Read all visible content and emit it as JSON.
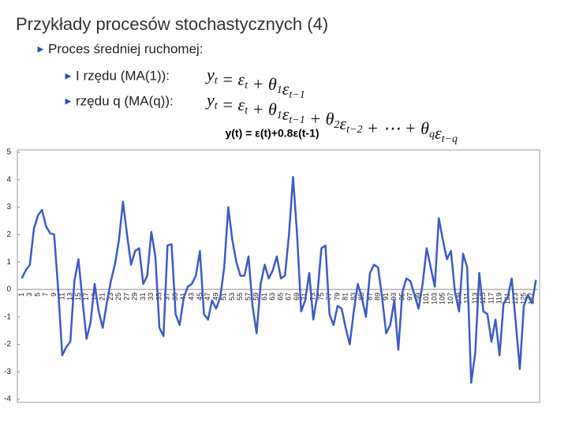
{
  "slide": {
    "title": "Przykłady procesów stochastycznych (4)",
    "bullets": [
      "Proces średniej ruchomej:",
      "I rzędu (MA(1)):",
      "rzędu q  (MA(q)):"
    ],
    "ma1_formula": [
      {
        "text": "y",
        "sub": "t"
      },
      {
        "text": " = "
      },
      {
        "text": "ε",
        "sub": "t"
      },
      {
        "text": " + "
      },
      {
        "text": "θ",
        "sub": "1"
      },
      {
        "text": "ε",
        "sub": "t−1"
      }
    ],
    "maq_formula": [
      {
        "text": "y",
        "sub": "t"
      },
      {
        "text": " = "
      },
      {
        "text": "ε",
        "sub": "t"
      },
      {
        "text": " + "
      },
      {
        "text": "θ",
        "sub": "1"
      },
      {
        "text": "ε",
        "sub": "t−1"
      },
      {
        "text": " + "
      },
      {
        "text": "θ",
        "sub": "2"
      },
      {
        "text": "ε",
        "sub": "t−2"
      },
      {
        "text": " + ⋯ + "
      },
      {
        "text": "θ",
        "sub": "q"
      },
      {
        "text": "ε",
        "sub": "t−q"
      }
    ]
  },
  "chart_data": {
    "type": "line",
    "title": "y(t) = ε(t)+0.8ε(t-1)",
    "color": "#3e5bc4",
    "grid": false,
    "categories": [
      1,
      null,
      3,
      null,
      5,
      null,
      7,
      null,
      9,
      null,
      11,
      null,
      13,
      null,
      15,
      null,
      17,
      null,
      19,
      null,
      21,
      null,
      23,
      null,
      25,
      null,
      27,
      null,
      29,
      null,
      31,
      null,
      33,
      null,
      35,
      null,
      37,
      null,
      39,
      null,
      41,
      null,
      43,
      null,
      45,
      null,
      47,
      null,
      49,
      null,
      51,
      null,
      53,
      null,
      55,
      null,
      57,
      null,
      59,
      null,
      61,
      null,
      63,
      null,
      65,
      null,
      67,
      null,
      69,
      null,
      71,
      null,
      73,
      null,
      75,
      null,
      77,
      null,
      79,
      null,
      81,
      null,
      83,
      null,
      85,
      null,
      87,
      null,
      89,
      null,
      91,
      null,
      93,
      null,
      95,
      null,
      97,
      null,
      99,
      null,
      101,
      null,
      103,
      null,
      105,
      null,
      107,
      null,
      109,
      null,
      111,
      null,
      113,
      null,
      115,
      null,
      117,
      null,
      119,
      null,
      121,
      null,
      123,
      null,
      125,
      null,
      127,
      null
    ],
    "values": [
      0.4,
      0.7,
      0.9,
      2.2,
      2.7,
      2.9,
      2.3,
      2.05,
      2.0,
      0.0,
      -2.4,
      -2.1,
      -1.9,
      0.3,
      1.1,
      -0.4,
      -1.8,
      -1.2,
      0.2,
      -0.8,
      -1.4,
      -0.5,
      0.3,
      0.9,
      1.8,
      3.2,
      2.0,
      0.9,
      1.4,
      1.5,
      0.2,
      0.5,
      2.1,
      1.2,
      -1.4,
      -1.7,
      1.6,
      1.65,
      -0.9,
      -1.3,
      -0.3,
      0.1,
      0.2,
      0.5,
      1.4,
      -0.9,
      -1.1,
      -0.4,
      -0.7,
      -0.3,
      0.8,
      3.0,
      1.8,
      1.0,
      0.5,
      0.5,
      1.2,
      -0.6,
      -1.6,
      0.2,
      0.9,
      0.4,
      0.7,
      1.2,
      0.4,
      0.5,
      2.0,
      4.1,
      2.0,
      -0.8,
      -0.4,
      0.6,
      -1.1,
      -0.2,
      1.5,
      1.6,
      -0.9,
      -1.3,
      -0.6,
      -0.7,
      -1.4,
      -2.0,
      -0.8,
      0.2,
      -0.3,
      -1.0,
      0.6,
      0.9,
      0.8,
      -0.3,
      -1.6,
      -1.3,
      -0.4,
      -2.2,
      -0.1,
      0.4,
      0.3,
      -0.2,
      -0.7,
      0.2,
      1.5,
      0.8,
      0.1,
      2.6,
      1.8,
      1.1,
      1.4,
      -0.1,
      -0.8,
      1.3,
      0.8,
      -3.4,
      -2.3,
      0.6,
      -0.8,
      -0.9,
      -1.9,
      -1.1,
      -2.4,
      -0.5,
      -0.3,
      0.4,
      -1.2,
      -2.9,
      -0.6,
      -0.2,
      -0.5,
      0.35
    ],
    "ylim": [
      -4,
      5
    ],
    "yticks": [
      -4,
      -3,
      -2,
      -1,
      0,
      1,
      2,
      3,
      4,
      5
    ]
  }
}
